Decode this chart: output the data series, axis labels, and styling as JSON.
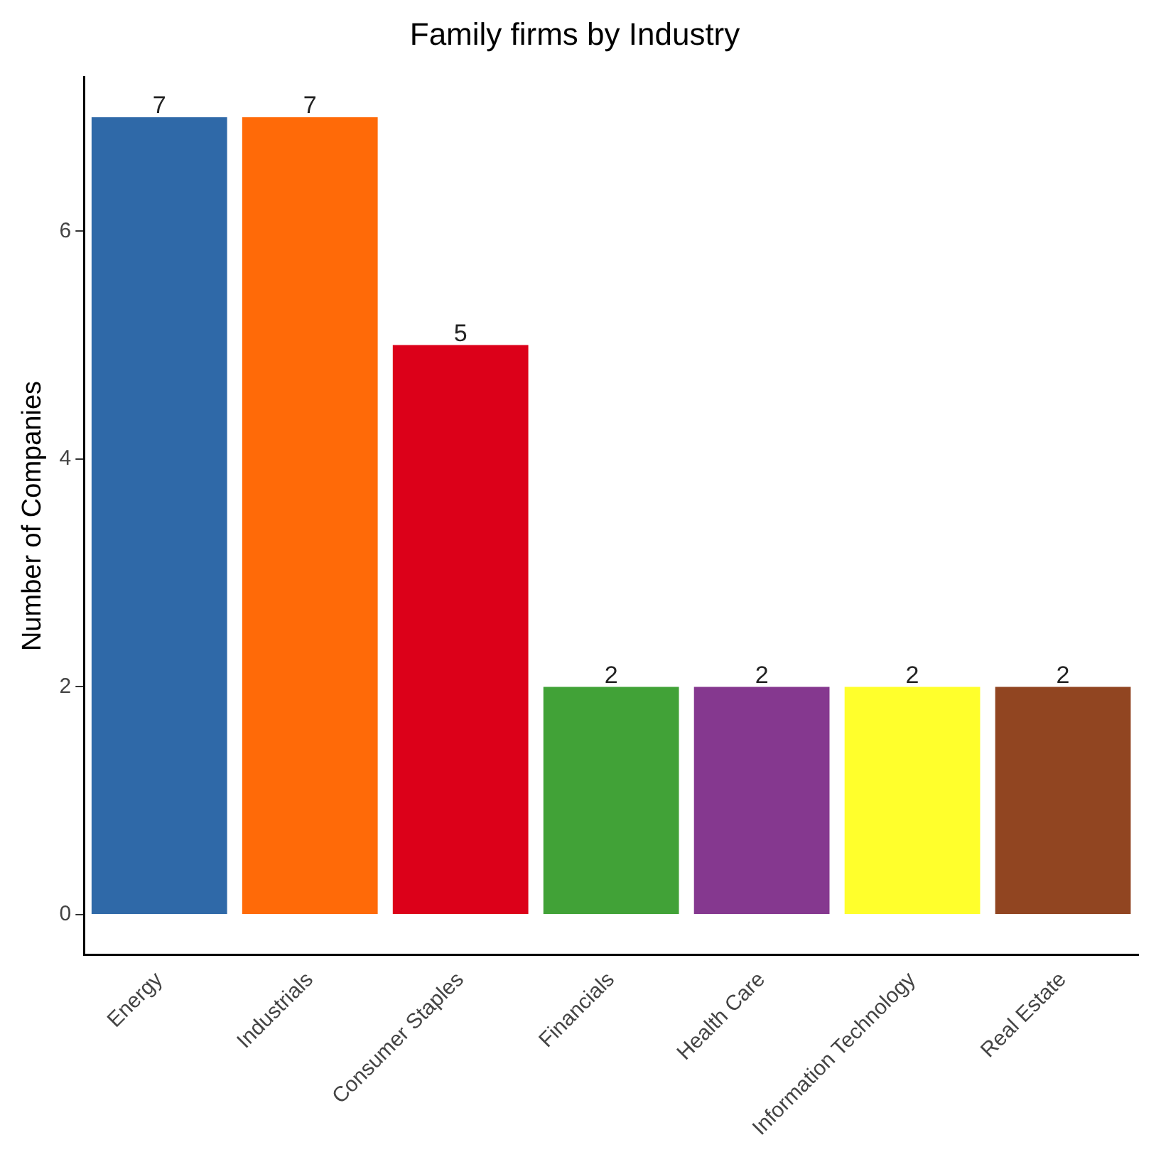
{
  "chart_data": {
    "type": "bar",
    "title": "Family firms by Industry",
    "ylabel": "Number of Companies",
    "categories": [
      "Energy",
      "Industrials",
      "Consumer Staples",
      "Financials",
      "Health Care",
      "Information Technology",
      "Real Estate"
    ],
    "values": [
      7,
      7,
      5,
      2,
      2,
      2,
      2
    ],
    "colors": [
      "#2f69a8",
      "#ff6a08",
      "#dc0019",
      "#41a237",
      "#85388f",
      "#ffff2c",
      "#914521"
    ],
    "ylim": [
      -0.35,
      7.35
    ],
    "yticks": [
      0,
      2,
      4,
      6
    ],
    "grid": false,
    "legend": false,
    "data_labels": true
  }
}
